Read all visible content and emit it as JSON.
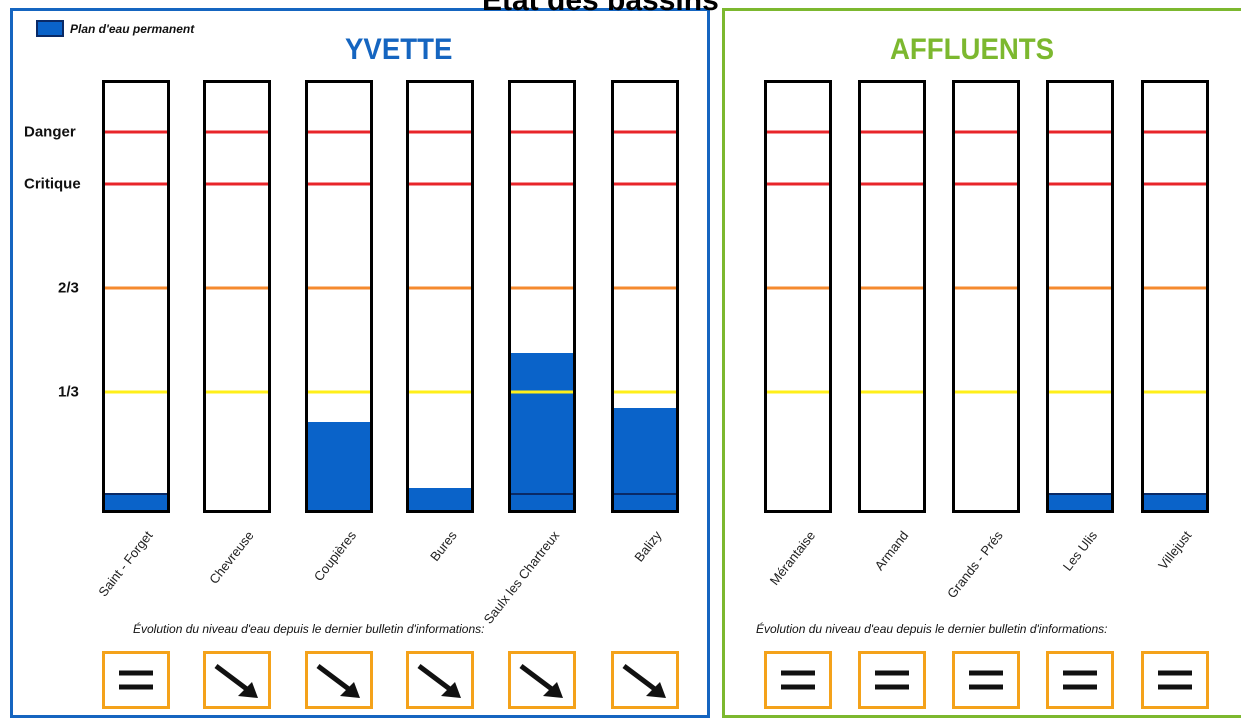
{
  "title": "État des bassins",
  "legend": {
    "label": "Plan d'eau permanent",
    "color": "#0a63c9"
  },
  "level_labels": [
    "Danger",
    "Critique",
    "2/3",
    "1/3"
  ],
  "colors": {
    "yvette": "#1565c0",
    "affluents": "#7cb82f",
    "water": "#0a63c9",
    "danger": "#e8252a",
    "critique": "#e8252a",
    "two_thirds": "#f58a2f",
    "one_third": "#ffef1a",
    "trend_box": "#f4a21a"
  },
  "evolution_caption": "Évolution du niveau d'eau depuis le dernier bulletin d'informations:",
  "chart_data": {
    "type": "bar",
    "title": "État des bassins",
    "level_scale": {
      "levels": [
        "1/3",
        "2/3",
        "Critique",
        "Danger"
      ],
      "ylim": [
        0,
        1
      ]
    },
    "groups": [
      {
        "name": "YVETTE",
        "stations": [
          {
            "name": "Saint - Forget",
            "level": 0,
            "permanent": true,
            "trend": "stable"
          },
          {
            "name": "Chevreuse",
            "level": 0,
            "permanent": false,
            "trend": "down"
          },
          {
            "name": "Coupières",
            "level": 0.2,
            "permanent": false,
            "trend": "down"
          },
          {
            "name": "Bures",
            "level": 0.02,
            "permanent": false,
            "trend": "down"
          },
          {
            "name": "Saulx les Chartreux",
            "level": 0.39,
            "permanent": true,
            "trend": "down"
          },
          {
            "name": "Balizy",
            "level": 0.24,
            "permanent": true,
            "trend": "down"
          }
        ]
      },
      {
        "name": "AFFLUENTS",
        "stations": [
          {
            "name": "Mérantaise",
            "level": 0,
            "permanent": false,
            "trend": "stable"
          },
          {
            "name": "Armand",
            "level": 0,
            "permanent": false,
            "trend": "stable"
          },
          {
            "name": "Grands - Prés",
            "level": 0,
            "permanent": false,
            "trend": "stable"
          },
          {
            "name": "Les Ulis",
            "level": 0,
            "permanent": true,
            "trend": "stable"
          },
          {
            "name": "Villejust",
            "level": 0,
            "permanent": true,
            "trend": "stable"
          }
        ]
      }
    ]
  }
}
